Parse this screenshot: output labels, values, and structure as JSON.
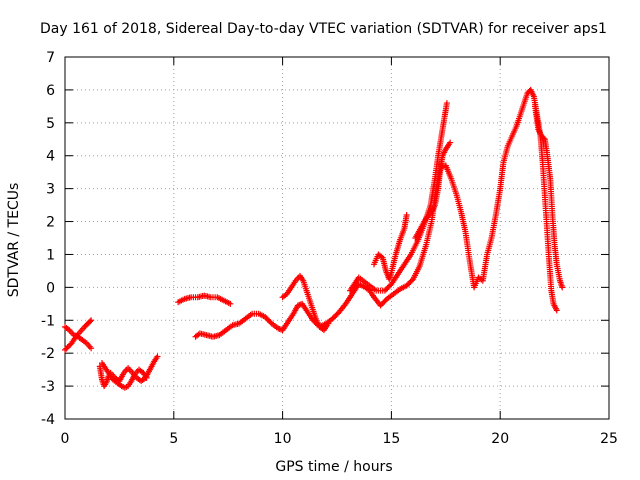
{
  "chart_data": {
    "type": "scatter",
    "title": "Day 161 of 2018, Sidereal Day-to-day VTEC variation (SDTVAR) for receiver aps1",
    "xlabel": "GPS time / hours",
    "ylabel": "SDTVAR / TECUs",
    "xlim": [
      0,
      25
    ],
    "ylim": [
      -4,
      7
    ],
    "xticks": [
      0,
      5,
      10,
      15,
      20,
      25
    ],
    "yticks": [
      -4,
      -3,
      -2,
      -1,
      0,
      1,
      2,
      3,
      4,
      5,
      6,
      7
    ],
    "grid": true,
    "marker": "+",
    "color": "#ff0000",
    "series": [
      {
        "name": "aps1",
        "segments": [
          [
            [
              0.0,
              -1.9
            ],
            [
              0.3,
              -1.7
            ],
            [
              0.5,
              -1.5
            ],
            [
              0.7,
              -1.35
            ],
            [
              0.9,
              -1.2
            ],
            [
              1.05,
              -1.1
            ],
            [
              1.2,
              -1.0
            ]
          ],
          [
            [
              0.0,
              -1.2
            ],
            [
              0.2,
              -1.3
            ],
            [
              0.4,
              -1.45
            ],
            [
              0.6,
              -1.5
            ],
            [
              0.8,
              -1.6
            ],
            [
              1.0,
              -1.7
            ],
            [
              1.2,
              -1.85
            ]
          ],
          [
            [
              1.6,
              -2.4
            ],
            [
              1.7,
              -2.8
            ],
            [
              1.8,
              -3.0
            ],
            [
              1.9,
              -2.9
            ],
            [
              2.0,
              -2.7
            ],
            [
              2.1,
              -2.6
            ],
            [
              2.3,
              -2.75
            ],
            [
              2.5,
              -2.85
            ],
            [
              2.7,
              -2.6
            ],
            [
              2.9,
              -2.45
            ],
            [
              3.1,
              -2.6
            ],
            [
              3.3,
              -2.75
            ],
            [
              3.5,
              -2.85
            ],
            [
              3.7,
              -2.75
            ],
            [
              3.9,
              -2.5
            ],
            [
              4.1,
              -2.25
            ],
            [
              4.25,
              -2.1
            ]
          ],
          [
            [
              1.7,
              -2.3
            ],
            [
              1.85,
              -2.45
            ],
            [
              2.0,
              -2.6
            ],
            [
              2.2,
              -2.8
            ],
            [
              2.4,
              -2.9
            ],
            [
              2.6,
              -3.0
            ],
            [
              2.75,
              -3.05
            ],
            [
              2.9,
              -3.0
            ],
            [
              3.05,
              -2.85
            ],
            [
              3.2,
              -2.65
            ],
            [
              3.4,
              -2.5
            ],
            [
              3.6,
              -2.6
            ],
            [
              3.75,
              -2.75
            ]
          ],
          [
            [
              5.2,
              -0.45
            ],
            [
              5.5,
              -0.35
            ],
            [
              5.8,
              -0.3
            ],
            [
              6.1,
              -0.3
            ],
            [
              6.4,
              -0.25
            ],
            [
              6.7,
              -0.3
            ],
            [
              7.0,
              -0.3
            ],
            [
              7.3,
              -0.4
            ],
            [
              7.6,
              -0.5
            ]
          ],
          [
            [
              6.0,
              -1.5
            ],
            [
              6.2,
              -1.4
            ],
            [
              6.5,
              -1.45
            ],
            [
              6.8,
              -1.5
            ],
            [
              7.1,
              -1.45
            ],
            [
              7.4,
              -1.3
            ],
            [
              7.7,
              -1.15
            ],
            [
              8.0,
              -1.1
            ],
            [
              8.3,
              -0.95
            ],
            [
              8.6,
              -0.8
            ],
            [
              8.9,
              -0.8
            ],
            [
              9.2,
              -0.9
            ],
            [
              9.5,
              -1.1
            ],
            [
              9.8,
              -1.25
            ],
            [
              10.0,
              -1.3
            ],
            [
              10.2,
              -1.1
            ],
            [
              10.5,
              -0.8
            ],
            [
              10.7,
              -0.55
            ],
            [
              10.9,
              -0.5
            ],
            [
              11.1,
              -0.7
            ],
            [
              11.4,
              -1.0
            ],
            [
              11.7,
              -1.2
            ],
            [
              12.0,
              -1.1
            ],
            [
              12.3,
              -0.95
            ],
            [
              12.6,
              -0.75
            ],
            [
              12.9,
              -0.5
            ],
            [
              13.2,
              -0.2
            ],
            [
              13.5,
              0.1
            ],
            [
              13.8,
              0.0
            ],
            [
              14.0,
              -0.1
            ],
            [
              14.2,
              -0.3
            ],
            [
              14.5,
              -0.55
            ],
            [
              14.8,
              -0.35
            ],
            [
              15.1,
              -0.2
            ],
            [
              15.4,
              -0.05
            ],
            [
              15.7,
              0.05
            ],
            [
              16.0,
              0.25
            ],
            [
              16.3,
              0.65
            ],
            [
              16.6,
              1.3
            ],
            [
              16.85,
              2.0
            ],
            [
              17.0,
              2.7
            ],
            [
              17.2,
              3.5
            ],
            [
              17.35,
              3.7
            ],
            [
              17.5,
              3.7
            ]
          ],
          [
            [
              10.0,
              -0.3
            ],
            [
              10.2,
              -0.2
            ],
            [
              10.4,
              0.0
            ],
            [
              10.6,
              0.2
            ],
            [
              10.8,
              0.35
            ],
            [
              10.95,
              0.2
            ],
            [
              11.1,
              -0.1
            ],
            [
              11.3,
              -0.5
            ],
            [
              11.5,
              -0.9
            ],
            [
              11.7,
              -1.2
            ],
            [
              11.9,
              -1.3
            ],
            [
              12.1,
              -1.1
            ]
          ],
          [
            [
              14.2,
              0.7
            ],
            [
              14.4,
              1.0
            ],
            [
              14.6,
              0.9
            ],
            [
              14.75,
              0.5
            ],
            [
              14.9,
              0.25
            ],
            [
              15.0,
              0.45
            ],
            [
              15.2,
              1.0
            ],
            [
              15.4,
              1.45
            ],
            [
              15.6,
              1.8
            ],
            [
              15.7,
              2.2
            ]
          ],
          [
            [
              13.1,
              -0.1
            ],
            [
              13.5,
              0.3
            ],
            [
              13.9,
              0.1
            ],
            [
              14.3,
              -0.1
            ],
            [
              14.7,
              -0.1
            ],
            [
              15.0,
              0.1
            ],
            [
              15.3,
              0.4
            ],
            [
              15.6,
              0.7
            ],
            [
              15.9,
              1.0
            ],
            [
              16.2,
              1.4
            ],
            [
              16.5,
              1.9
            ],
            [
              16.8,
              2.5
            ],
            [
              17.0,
              3.3
            ],
            [
              17.15,
              4.0
            ],
            [
              17.3,
              4.6
            ],
            [
              17.45,
              5.2
            ],
            [
              17.55,
              5.6
            ]
          ],
          [
            [
              16.1,
              1.5
            ],
            [
              16.35,
              1.8
            ],
            [
              16.6,
              2.1
            ],
            [
              16.85,
              2.3
            ],
            [
              17.0,
              2.5
            ],
            [
              17.15,
              3.0
            ],
            [
              17.25,
              3.6
            ],
            [
              17.35,
              4.0
            ],
            [
              17.5,
              4.2
            ],
            [
              17.7,
              4.4
            ]
          ],
          [
            [
              17.5,
              3.7
            ],
            [
              17.75,
              3.3
            ],
            [
              18.0,
              2.8
            ],
            [
              18.2,
              2.3
            ],
            [
              18.4,
              1.7
            ],
            [
              18.6,
              0.8
            ],
            [
              18.8,
              0.0
            ],
            [
              19.0,
              0.3
            ],
            [
              19.2,
              0.2
            ],
            [
              19.4,
              1.0
            ],
            [
              19.6,
              1.5
            ],
            [
              19.8,
              2.2
            ],
            [
              20.0,
              3.0
            ],
            [
              20.15,
              3.8
            ],
            [
              20.35,
              4.3
            ],
            [
              20.55,
              4.6
            ],
            [
              20.75,
              4.9
            ],
            [
              20.95,
              5.3
            ],
            [
              21.1,
              5.6
            ],
            [
              21.25,
              5.9
            ],
            [
              21.4,
              6.0
            ],
            [
              21.55,
              5.8
            ],
            [
              21.7,
              5.2
            ],
            [
              21.85,
              4.6
            ],
            [
              21.95,
              3.8
            ],
            [
              22.05,
              2.8
            ],
            [
              22.15,
              1.8
            ],
            [
              22.25,
              0.8
            ],
            [
              22.35,
              -0.1
            ],
            [
              22.45,
              -0.5
            ],
            [
              22.6,
              -0.7
            ]
          ],
          [
            [
              21.6,
              5.5
            ],
            [
              21.75,
              4.8
            ],
            [
              21.9,
              4.6
            ],
            [
              22.05,
              4.5
            ],
            [
              22.15,
              4.1
            ],
            [
              22.3,
              3.3
            ],
            [
              22.4,
              2.2
            ],
            [
              22.5,
              1.3
            ],
            [
              22.6,
              0.7
            ],
            [
              22.75,
              0.2
            ],
            [
              22.85,
              0.0
            ]
          ]
        ]
      }
    ]
  }
}
